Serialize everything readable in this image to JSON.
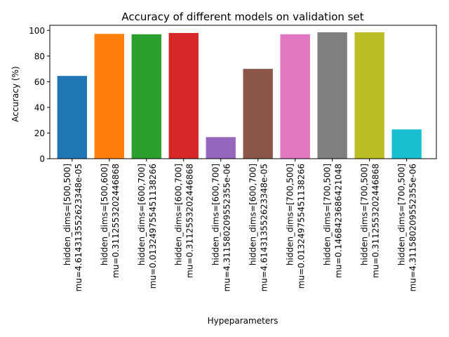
{
  "chart_data": {
    "type": "bar",
    "title": "Accuracy of different models on validation set",
    "xlabel": "Hypeparameters",
    "ylabel": "Accuracy (%)",
    "ylim": [
      0,
      104
    ],
    "yticks": [
      0,
      20,
      40,
      60,
      80,
      100
    ],
    "grid": false,
    "categories": [
      [
        "hidden_dims=[500,500]",
        "mu=4.614313552623348e-05"
      ],
      [
        "hidden_dims=[500,600]",
        "mu=0.3112553202446868"
      ],
      [
        "hidden_dims=[600,700]",
        "mu=0.013249755451138266"
      ],
      [
        "hidden_dims=[600,700]",
        "mu=0.3112553202446868"
      ],
      [
        "hidden_dims=[600,700]",
        "mu=4.311580209552355e-06"
      ],
      [
        "hidden_dims=[600,700]",
        "mu=4.614313552623348e-05"
      ],
      [
        "hidden_dims=[700,500]",
        "mu=0.013249755451138266"
      ],
      [
        "hidden_dims=[700,500]",
        "mu=0.1468423686421048"
      ],
      [
        "hidden_dims=[700,500]",
        "mu=0.3112553202446868"
      ],
      [
        "hidden_dims=[700,500]",
        "mu=4.311580209552355e-06"
      ]
    ],
    "values": [
      64.5,
      97.3,
      97.0,
      98.0,
      16.8,
      70.0,
      97.0,
      98.5,
      98.5,
      22.8
    ],
    "colors": [
      "#1f77b4",
      "#ff7f0e",
      "#2ca02c",
      "#d62728",
      "#9467bd",
      "#8c564b",
      "#e377c2",
      "#7f7f7f",
      "#bcbd22",
      "#17becf"
    ]
  }
}
